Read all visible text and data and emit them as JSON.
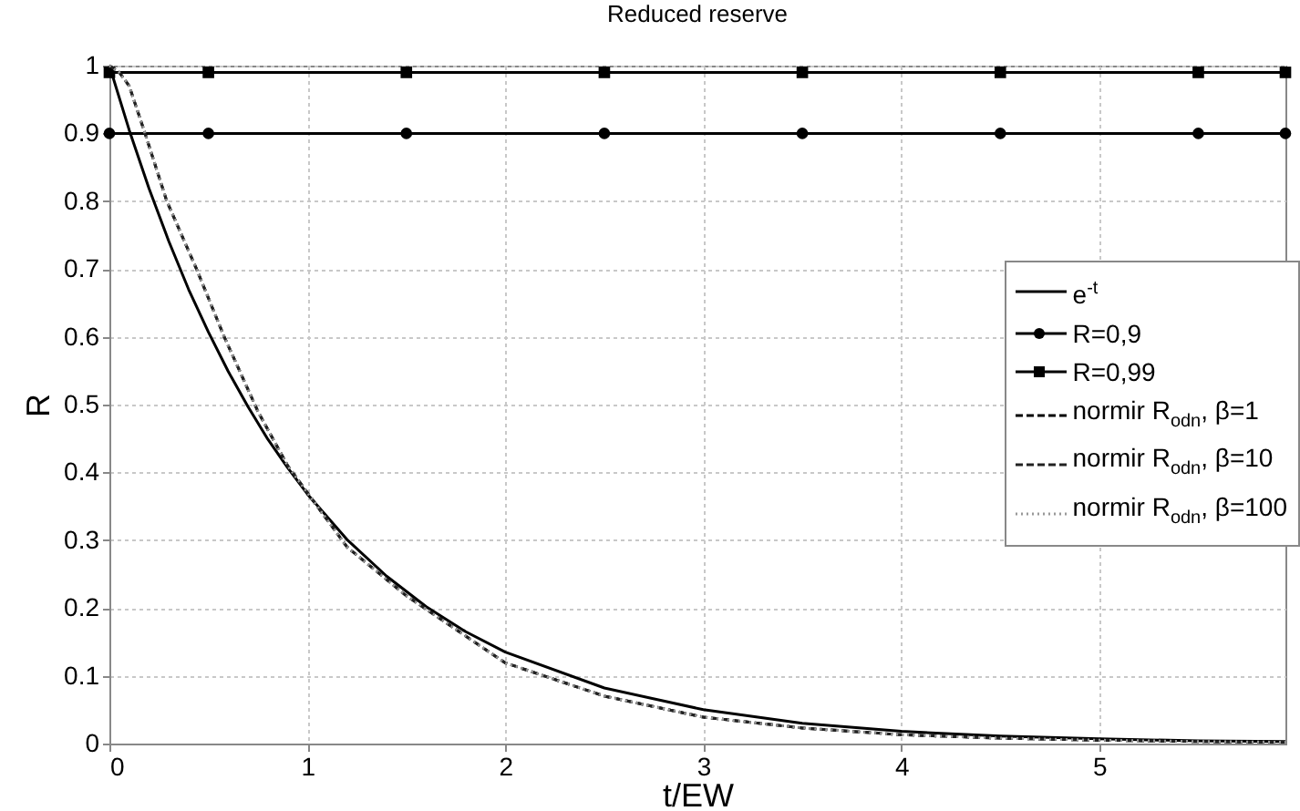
{
  "chart_data": {
    "type": "line",
    "title": "Reduced reserve",
    "xlabel": "t/EW",
    "ylabel": "R",
    "xlim": [
      0,
      5.94
    ],
    "xticks": [
      0,
      1,
      2,
      3,
      4,
      5
    ],
    "ylim": [
      0,
      1
    ],
    "yticks": [
      0,
      0.1,
      0.2,
      0.3,
      0.4,
      0.5,
      0.6,
      0.7,
      0.8,
      0.9,
      1
    ],
    "grid": true,
    "legend": "top right",
    "series": [
      {
        "name": "e$^{-t}$",
        "color": "#000000",
        "line_style": "solid",
        "x": [
          0,
          0.1,
          0.2,
          0.3,
          0.4,
          0.5,
          0.6,
          0.7,
          0.8,
          0.9,
          1,
          1.2,
          1.4,
          1.6,
          1.8,
          2,
          2.5,
          3,
          3.5,
          4,
          4.5,
          5,
          5.5,
          5.94
        ],
        "values": [
          1,
          0.905,
          0.819,
          0.741,
          0.67,
          0.607,
          0.549,
          0.497,
          0.449,
          0.407,
          0.368,
          0.301,
          0.247,
          0.202,
          0.165,
          0.135,
          0.082,
          0.05,
          0.03,
          0.018,
          0.011,
          0.007,
          0.004,
          0.003
        ]
      },
      {
        "name": "R=0,9",
        "color": "#000000",
        "line_style": "solid",
        "marker": "circle",
        "x": [
          0,
          0.5,
          1.5,
          2.5,
          3.5,
          4.5,
          5.5,
          5.94
        ],
        "values": [
          0.9,
          0.9,
          0.9,
          0.9,
          0.9,
          0.9,
          0.9,
          0.9
        ]
      },
      {
        "name": "R=0,99",
        "color": "#000000",
        "line_style": "solid",
        "marker": "square",
        "x": [
          0,
          0.5,
          1.5,
          2.5,
          3.5,
          4.5,
          5.5,
          5.94
        ],
        "values": [
          0.99,
          0.99,
          0.99,
          0.99,
          0.99,
          0.99,
          0.99,
          0.99
        ]
      },
      {
        "name": "normir R$_{odn}$, β=1",
        "color": "#000000",
        "line_style": "dashed",
        "x": [
          0,
          0.05,
          0.1,
          0.18,
          0.29,
          0.44,
          0.58,
          0.75,
          0.9,
          1,
          1.2,
          1.5,
          2,
          2.5,
          3,
          3.5,
          4,
          4.5,
          5,
          5.5,
          5.94
        ],
        "values": [
          1,
          0.99,
          0.97,
          0.9,
          0.8,
          0.7,
          0.6,
          0.49,
          0.41,
          0.37,
          0.29,
          0.218,
          0.119,
          0.07,
          0.039,
          0.023,
          0.013,
          0.008,
          0.005,
          0.003,
          0.002
        ]
      },
      {
        "name": "normir R$_{odn}$, β=10",
        "color": "#222222",
        "line_style": "dashed",
        "x": [
          0,
          0.05,
          0.1,
          0.18,
          0.29,
          0.44,
          0.58,
          0.75,
          0.9,
          1,
          1.2,
          1.5,
          2,
          2.5,
          3,
          3.5,
          4,
          4.5,
          5,
          5.5,
          5.94
        ],
        "values": [
          1,
          0.99,
          0.97,
          0.9,
          0.8,
          0.7,
          0.6,
          0.49,
          0.41,
          0.37,
          0.29,
          0.218,
          0.119,
          0.07,
          0.039,
          0.023,
          0.013,
          0.008,
          0.005,
          0.003,
          0.002
        ]
      },
      {
        "name": "normir R$_{odn}$, β=100",
        "color": "#999999",
        "line_style": "dotted",
        "x": [
          0,
          0.05,
          0.1,
          0.18,
          0.29,
          0.44,
          0.58,
          0.75,
          0.9,
          1,
          1.2,
          1.5,
          2,
          2.5,
          3,
          3.5,
          4,
          4.5,
          5,
          5.5,
          5.94
        ],
        "values": [
          1,
          0.99,
          0.97,
          0.9,
          0.8,
          0.7,
          0.6,
          0.49,
          0.41,
          0.37,
          0.29,
          0.218,
          0.119,
          0.07,
          0.039,
          0.023,
          0.013,
          0.008,
          0.005,
          0.003,
          0.002
        ]
      }
    ]
  }
}
